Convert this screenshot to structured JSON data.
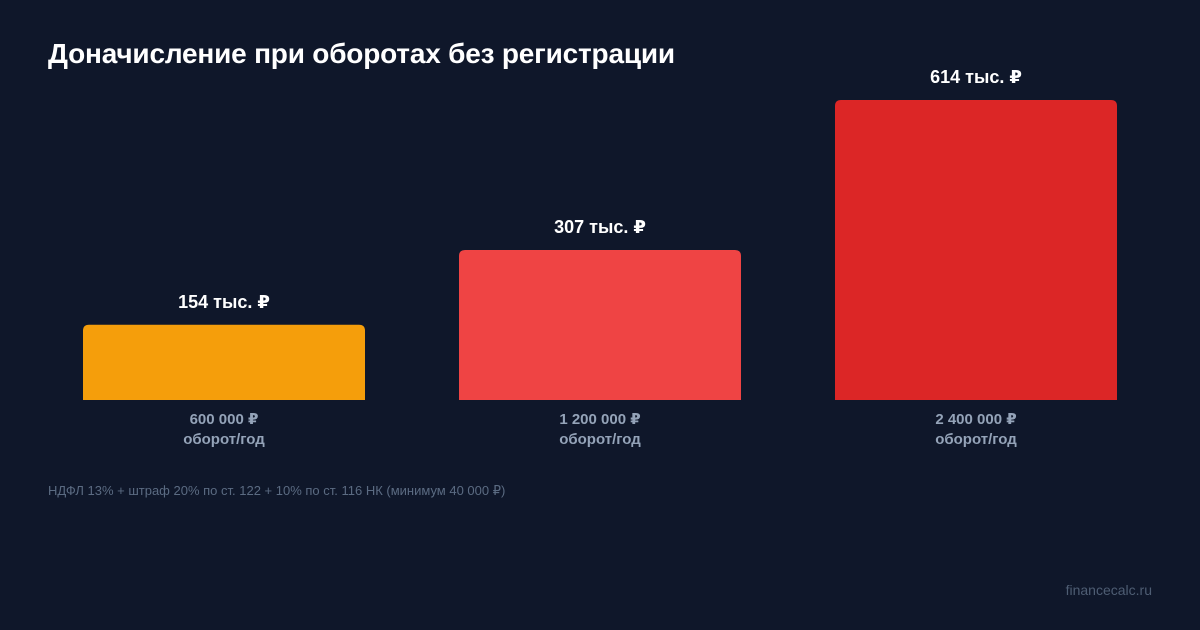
{
  "header": {
    "title": "Доначисление при оборотах без регистрации"
  },
  "chart_data": {
    "type": "bar",
    "title": "Доначисление при оборотах без регистрации",
    "xlabel": "",
    "ylabel": "",
    "ylim": [
      0,
      614
    ],
    "grid": false,
    "unit": "тыс. ₽",
    "categories": [
      "600 000 ₽",
      "1 200 000 ₽",
      "2 400 000 ₽"
    ],
    "category_sublabel": "оборот/год",
    "values": [
      154,
      307,
      614
    ],
    "value_labels": [
      "154 тыс. ₽",
      "307 тыс. ₽",
      "614 тыс. ₽"
    ],
    "colors": [
      "#f59e0b",
      "#ef4444",
      "#dc2626"
    ]
  },
  "footnote": "НДФЛ 13% + штраф 20% по ст. 122 + 10% по ст. 116 НК (минимум 40 000 ₽)",
  "brand": "financecalc.ru",
  "colors": {
    "background": "#0f172a",
    "title": "#ffffff",
    "category_label": "#94a3b8",
    "footnote": "#5b6b82",
    "brand": "#4e5d73"
  }
}
